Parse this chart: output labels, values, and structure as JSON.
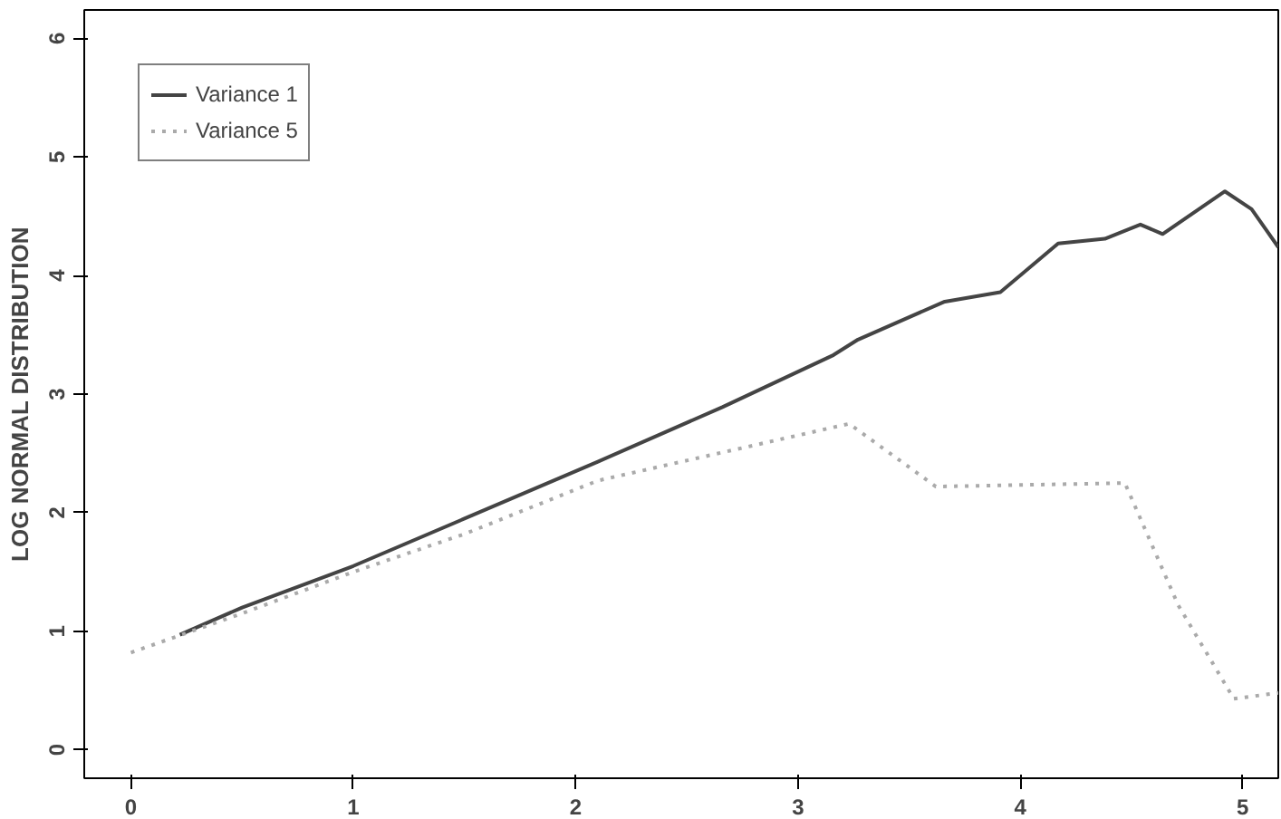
{
  "chart_data": {
    "type": "line",
    "ylabel": "LOG NORMAL DISTRIBUTION",
    "xlim": [
      -0.21,
      5.16
    ],
    "ylim": [
      -0.24,
      6.24
    ],
    "xticks": [
      0,
      1,
      2,
      3,
      4,
      5
    ],
    "yticks": [
      0,
      1,
      2,
      3,
      4,
      5,
      6
    ],
    "grid": false,
    "legend": "top left",
    "series": [
      {
        "name": "Variance 1",
        "color": "#444444",
        "line_style": "solid",
        "x": [
          0.22,
          0.5,
          1,
          1.5,
          2.1,
          2.66,
          3.16,
          3.27,
          3.66,
          3.91,
          4.17,
          4.38,
          4.54,
          4.64,
          4.92,
          5.04,
          5.16
        ],
        "values": [
          0.97,
          1.2,
          1.55,
          1.95,
          2.43,
          2.89,
          3.33,
          3.46,
          3.78,
          3.86,
          4.27,
          4.31,
          4.43,
          4.35,
          4.71,
          4.56,
          4.24
        ]
      },
      {
        "name": "Variance 5",
        "color": "#aaaaaa",
        "line_style": "dotted",
        "x": [
          0,
          0.5,
          1,
          1.5,
          2.1,
          3.23,
          3.62,
          4.47,
          4.71,
          4.96,
          5.16
        ],
        "values": [
          0.82,
          1.15,
          1.5,
          1.82,
          2.27,
          2.75,
          2.22,
          2.25,
          1.22,
          0.43,
          0.48
        ]
      }
    ]
  }
}
